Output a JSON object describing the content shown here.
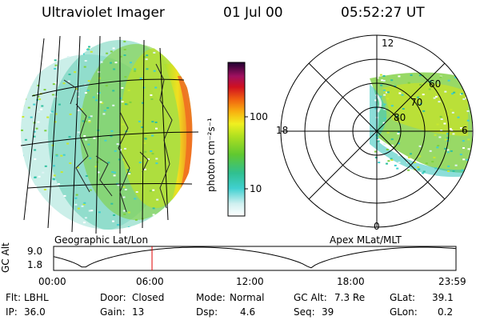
{
  "header": {
    "title": "Ultraviolet Imager",
    "date": "01 Jul 00",
    "time": "05:52:27 UT"
  },
  "colorbar": {
    "unit_label": "photon cm⁻²s⁻¹",
    "ticks": [
      "100",
      "10"
    ]
  },
  "left_panel": {
    "caption": "Geographic Lat/Lon"
  },
  "right_panel": {
    "caption": "Apex MLat/MLT",
    "mlt_labels": {
      "top": "12",
      "left": "18",
      "right": "6",
      "bottom": "0"
    },
    "lat_labels": [
      "60",
      "70",
      "80"
    ]
  },
  "orbit_plot": {
    "ylabel": "GC Alt",
    "yticks": [
      "9.0",
      "1.8"
    ],
    "xticks": [
      "00:00",
      "06:00",
      "12:00",
      "18:00",
      "23:59"
    ],
    "marker_time_hours": 5.87,
    "altitude_re": {
      "min": 1.8,
      "max": 9.0
    }
  },
  "status": {
    "row1": [
      {
        "label": "Flt:",
        "value": "LBHL"
      },
      {
        "label": "Door:",
        "value": "Closed"
      },
      {
        "label": "Mode:",
        "value": "Normal"
      },
      {
        "label": "GC Alt:",
        "value": "7.3 Re"
      },
      {
        "label": "GLat:",
        "value": "39.1"
      }
    ],
    "row2": [
      {
        "label": "IP:",
        "value": "36.0"
      },
      {
        "label": "Gain:",
        "value": "13"
      },
      {
        "label": "Dsp:",
        "value": "4.6"
      },
      {
        "label": "Seq:",
        "value": "39"
      },
      {
        "label": "GLon:",
        "value": "0.2"
      }
    ]
  }
}
